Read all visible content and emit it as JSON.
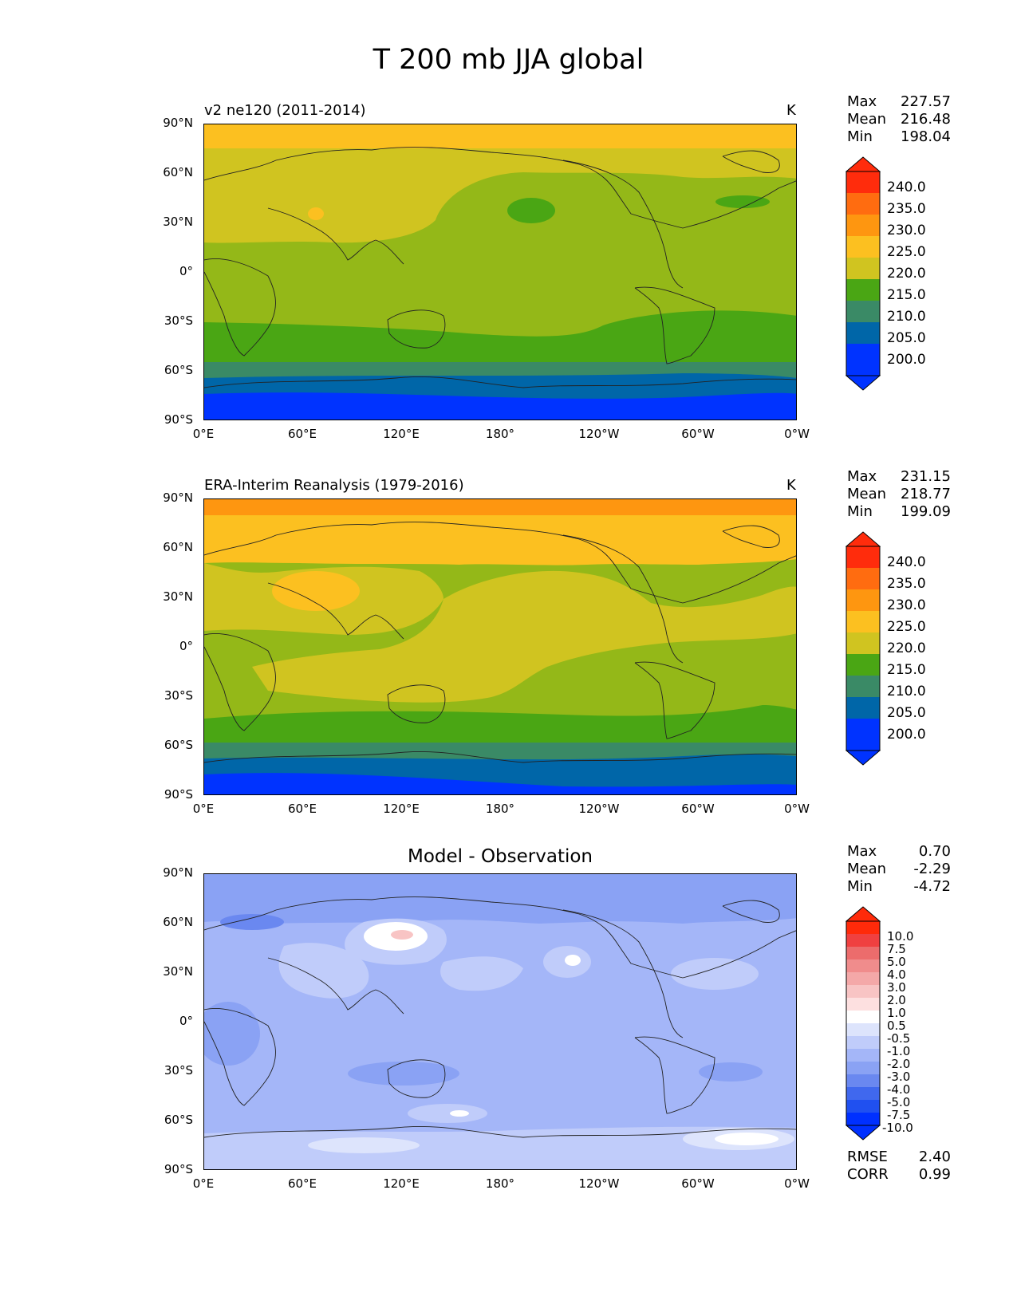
{
  "figure": {
    "title": "T 200 mb JJA global"
  },
  "axes": {
    "lat_ticks": [
      "90°N",
      "60°N",
      "30°N",
      "0°",
      "30°S",
      "60°S",
      "90°S"
    ],
    "lon_ticks": [
      "0°E",
      "60°E",
      "120°E",
      "180°",
      "120°W",
      "60°W",
      "0°W"
    ]
  },
  "panels": [
    {
      "title": "v2 ne120 (2011-2014)",
      "units": "K",
      "stats": {
        "max_label": "Max",
        "max": "227.57",
        "mean_label": "Mean",
        "mean": "216.48",
        "min_label": "Min",
        "min": "198.04"
      },
      "colorbar_labels": [
        "240.0",
        "235.0",
        "230.0",
        "225.0",
        "220.0",
        "215.0",
        "210.0",
        "205.0",
        "200.0"
      ]
    },
    {
      "title": "ERA-Interim Reanalysis (1979-2016)",
      "units": "K",
      "stats": {
        "max_label": "Max",
        "max": "231.15",
        "mean_label": "Mean",
        "mean": "218.77",
        "min_label": "Min",
        "min": "199.09"
      },
      "colorbar_labels": [
        "240.0",
        "235.0",
        "230.0",
        "225.0",
        "220.0",
        "215.0",
        "210.0",
        "205.0",
        "200.0"
      ]
    },
    {
      "title": "Model - Observation",
      "units": "",
      "stats": {
        "max_label": "Max",
        "max": "0.70",
        "mean_label": "Mean",
        "mean": "-2.29",
        "min_label": "Min",
        "min": "-4.72"
      },
      "colorbar_labels": [
        "10.0",
        "7.5",
        "5.0",
        "4.0",
        "3.0",
        "2.0",
        "1.0",
        "0.5",
        "-0.5",
        "-1.0",
        "-2.0",
        "-3.0",
        "-4.0",
        "-5.0",
        "-7.5",
        "-10.0"
      ],
      "error_stats": {
        "rmse_label": "RMSE",
        "rmse": "2.40",
        "corr_label": "CORR",
        "corr": "0.99"
      }
    }
  ],
  "colors": {
    "abs_levels": [
      "#0033ff",
      "#0066a8",
      "#3a8a66",
      "#4aa614",
      "#94b818",
      "#d0c420",
      "#fcc020",
      "#fe9610",
      "#ff6c10",
      "#ff2c0c"
    ],
    "diff_levels": [
      "#0030ff",
      "#2050f0",
      "#4068ee",
      "#6a88f0",
      "#8aa2f4",
      "#a4b6f8",
      "#c0ccfa",
      "#dde4fc",
      "#ffffff",
      "#fde0e0",
      "#f8c4c4",
      "#f4a8a8",
      "#f08c8c",
      "#ec6c6c",
      "#f04040",
      "#ff2a0a"
    ]
  }
}
